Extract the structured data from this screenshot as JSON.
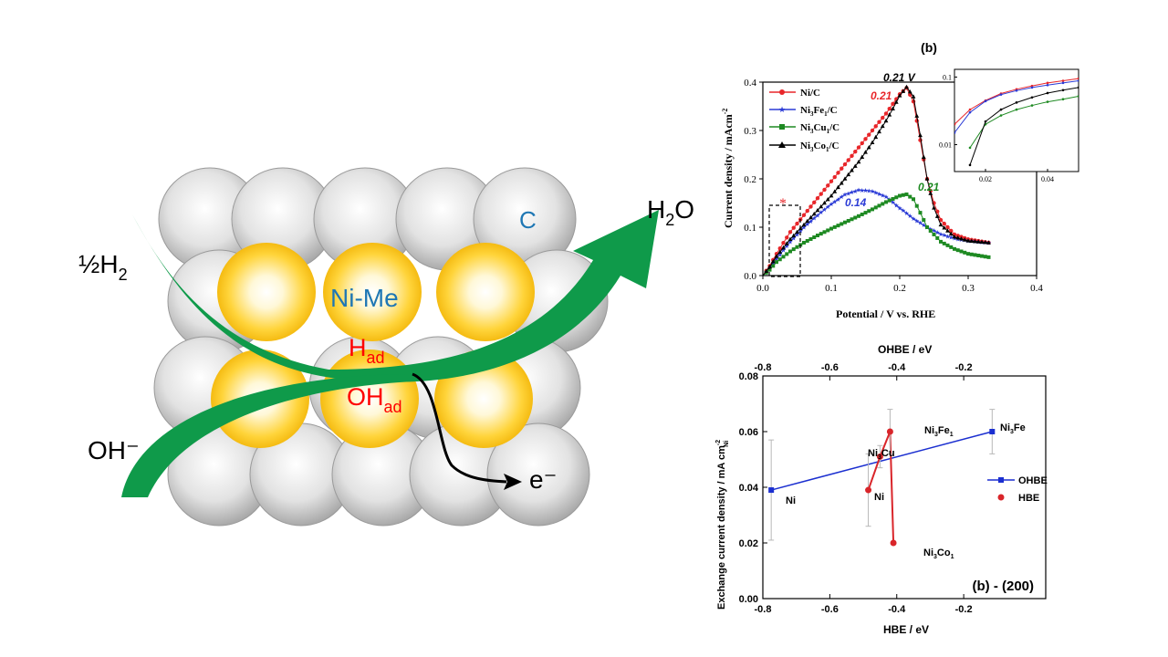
{
  "scheme": {
    "carbon_label": "C",
    "nime_label": "Ni-Me",
    "h_label": "H",
    "h_sub": "ad",
    "oh_label": "OH",
    "oh_sub": "ad",
    "h2_label": "½H",
    "h2_sub": "2",
    "h2o_label": "H",
    "h2o_sub": "2",
    "h2o_tail": "O",
    "oh_minus": "OH⁻",
    "electron": "e⁻",
    "colors": {
      "arrow": "#0f9a4a",
      "gold": "#f2b705",
      "carbon_label": "#1f77b4",
      "red": "#ff0000"
    }
  },
  "chart_data": [
    {
      "type": "line",
      "panel_label": "(b)",
      "xlabel": "Potential / V vs. RHE",
      "ylabel": "Current density / mAcm",
      "ylabel_sup": "-2",
      "xlim": [
        0.0,
        0.4
      ],
      "ylim": [
        0.0,
        0.4
      ],
      "xticks": [
        "0.0",
        "0.1",
        "0.2",
        "0.3",
        "0.4"
      ],
      "yticks": [
        "0.0",
        "0.1",
        "0.2",
        "0.3",
        "0.4"
      ],
      "legend_position": "top-left",
      "series": [
        {
          "name": "Ni/C",
          "color": "#e8262a",
          "marker": "circle",
          "x": [
            0.0,
            0.01,
            0.02,
            0.04,
            0.06,
            0.08,
            0.1,
            0.12,
            0.14,
            0.16,
            0.18,
            0.19,
            0.2,
            0.21,
            0.22,
            0.23,
            0.24,
            0.25,
            0.26,
            0.28,
            0.3,
            0.33
          ],
          "y": [
            0.0,
            0.02,
            0.045,
            0.09,
            0.125,
            0.16,
            0.195,
            0.23,
            0.265,
            0.3,
            0.335,
            0.355,
            0.375,
            0.388,
            0.36,
            0.28,
            0.2,
            0.15,
            0.115,
            0.085,
            0.075,
            0.068
          ]
        },
        {
          "name": "Ni3Fe1/C",
          "color": "#2b3bd6",
          "marker": "star",
          "x": [
            0.0,
            0.01,
            0.02,
            0.04,
            0.06,
            0.08,
            0.1,
            0.12,
            0.14,
            0.16,
            0.18,
            0.2,
            0.22,
            0.24,
            0.26,
            0.28,
            0.3,
            0.33
          ],
          "y": [
            0.0,
            0.015,
            0.035,
            0.07,
            0.1,
            0.125,
            0.148,
            0.168,
            0.177,
            0.175,
            0.163,
            0.14,
            0.118,
            0.1,
            0.086,
            0.077,
            0.072,
            0.068
          ]
        },
        {
          "name": "Ni3Cu1/C",
          "color": "#1e8a22",
          "marker": "square",
          "x": [
            0.0,
            0.01,
            0.02,
            0.04,
            0.06,
            0.08,
            0.1,
            0.12,
            0.14,
            0.16,
            0.18,
            0.2,
            0.21,
            0.22,
            0.23,
            0.24,
            0.26,
            0.28,
            0.3,
            0.33
          ],
          "y": [
            0.0,
            0.012,
            0.028,
            0.05,
            0.068,
            0.083,
            0.097,
            0.11,
            0.123,
            0.137,
            0.152,
            0.165,
            0.168,
            0.158,
            0.13,
            0.1,
            0.07,
            0.055,
            0.045,
            0.038
          ]
        },
        {
          "name": "Ni3Co1/C",
          "color": "#000000",
          "marker": "triangle",
          "x": [
            0.0,
            0.01,
            0.02,
            0.04,
            0.06,
            0.08,
            0.1,
            0.12,
            0.14,
            0.16,
            0.18,
            0.19,
            0.2,
            0.21,
            0.22,
            0.23,
            0.24,
            0.25,
            0.26,
            0.28,
            0.3,
            0.33
          ],
          "y": [
            0.0,
            0.018,
            0.04,
            0.075,
            0.105,
            0.135,
            0.165,
            0.2,
            0.235,
            0.275,
            0.32,
            0.345,
            0.372,
            0.39,
            0.37,
            0.29,
            0.2,
            0.14,
            0.105,
            0.08,
            0.072,
            0.068
          ]
        }
      ],
      "legend": [
        "Ni/C",
        "Ni",
        "3",
        "Fe",
        "1",
        "/C",
        "Cu",
        "Co"
      ],
      "annotations": [
        "0.21 V",
        "0.21",
        "0.14",
        "0.21",
        "*"
      ],
      "inset": {
        "scale": "log",
        "xticks": [
          "0.02",
          "0.04"
        ],
        "yticks": [
          "0.1",
          "0.01"
        ],
        "xlim": [
          0.01,
          0.05
        ],
        "ylim": [
          0.004,
          0.13
        ],
        "series": [
          {
            "name": "Ni/C",
            "color": "#e8262a",
            "x": [
              0.01,
              0.015,
              0.02,
              0.025,
              0.03,
              0.035,
              0.04,
              0.045,
              0.05
            ],
            "y": [
              0.02,
              0.033,
              0.045,
              0.057,
              0.066,
              0.074,
              0.082,
              0.088,
              0.095
            ]
          },
          {
            "name": "Ni3Fe1/C",
            "color": "#2b3bd6",
            "x": [
              0.01,
              0.015,
              0.02,
              0.025,
              0.03,
              0.035,
              0.04,
              0.045,
              0.05
            ],
            "y": [
              0.015,
              0.03,
              0.044,
              0.055,
              0.063,
              0.07,
              0.076,
              0.082,
              0.088
            ]
          },
          {
            "name": "Ni3Cu1/C",
            "color": "#1e8a22",
            "x": [
              0.015,
              0.02,
              0.025,
              0.03,
              0.035,
              0.04,
              0.045,
              0.05
            ],
            "y": [
              0.009,
              0.02,
              0.027,
              0.033,
              0.038,
              0.043,
              0.047,
              0.052
            ]
          },
          {
            "name": "Ni3Co1/C",
            "color": "#000000",
            "x": [
              0.015,
              0.02,
              0.025,
              0.03,
              0.035,
              0.04,
              0.045,
              0.05
            ],
            "y": [
              0.005,
              0.022,
              0.033,
              0.042,
              0.05,
              0.058,
              0.064,
              0.07
            ]
          }
        ]
      }
    },
    {
      "type": "scatter",
      "xlabel": "HBE / eV",
      "x2label": "OHBE / eV",
      "ylabel": "Exchange current density / mA cm",
      "ylabel_sup": "-2",
      "ylabel_sub": "Ni",
      "panel_label": "(b) - (200)",
      "xlim": [
        -0.8,
        0.0
      ],
      "ylim": [
        0.0,
        0.08
      ],
      "xticks": [
        "-0.8",
        "-0.6",
        "-0.4",
        "-0.2"
      ],
      "x2ticks": [
        "-0.8",
        "-0.6",
        "-0.4",
        "-0.2"
      ],
      "yticks": [
        "0.00",
        "0.02",
        "0.04",
        "0.06",
        "0.08"
      ],
      "legend_position": "right",
      "series": [
        {
          "name": "OHBE",
          "color": "#1b2fd0",
          "marker": "square",
          "x": [
            -0.775,
            -0.115
          ],
          "y": [
            0.039,
            0.06
          ],
          "err": [
            0.018,
            0.008
          ],
          "labels": [
            "Ni",
            "Ni3Fe"
          ]
        },
        {
          "name": "HBE",
          "color": "#d9252a",
          "marker": "circle",
          "x": [
            -0.485,
            -0.45,
            -0.42,
            -0.41
          ],
          "y": [
            0.039,
            0.051,
            0.06,
            0.02
          ],
          "err": [
            0.013,
            0.004,
            0.008,
            0.0
          ],
          "labels": [
            "Ni",
            "Ni3Cu",
            "Ni3Fe1",
            "Ni3Co1"
          ]
        }
      ],
      "point_labels": [
        "Ni",
        "Ni",
        "3",
        "Fe",
        "Fe",
        "1",
        "Cu",
        "Co"
      ]
    }
  ]
}
